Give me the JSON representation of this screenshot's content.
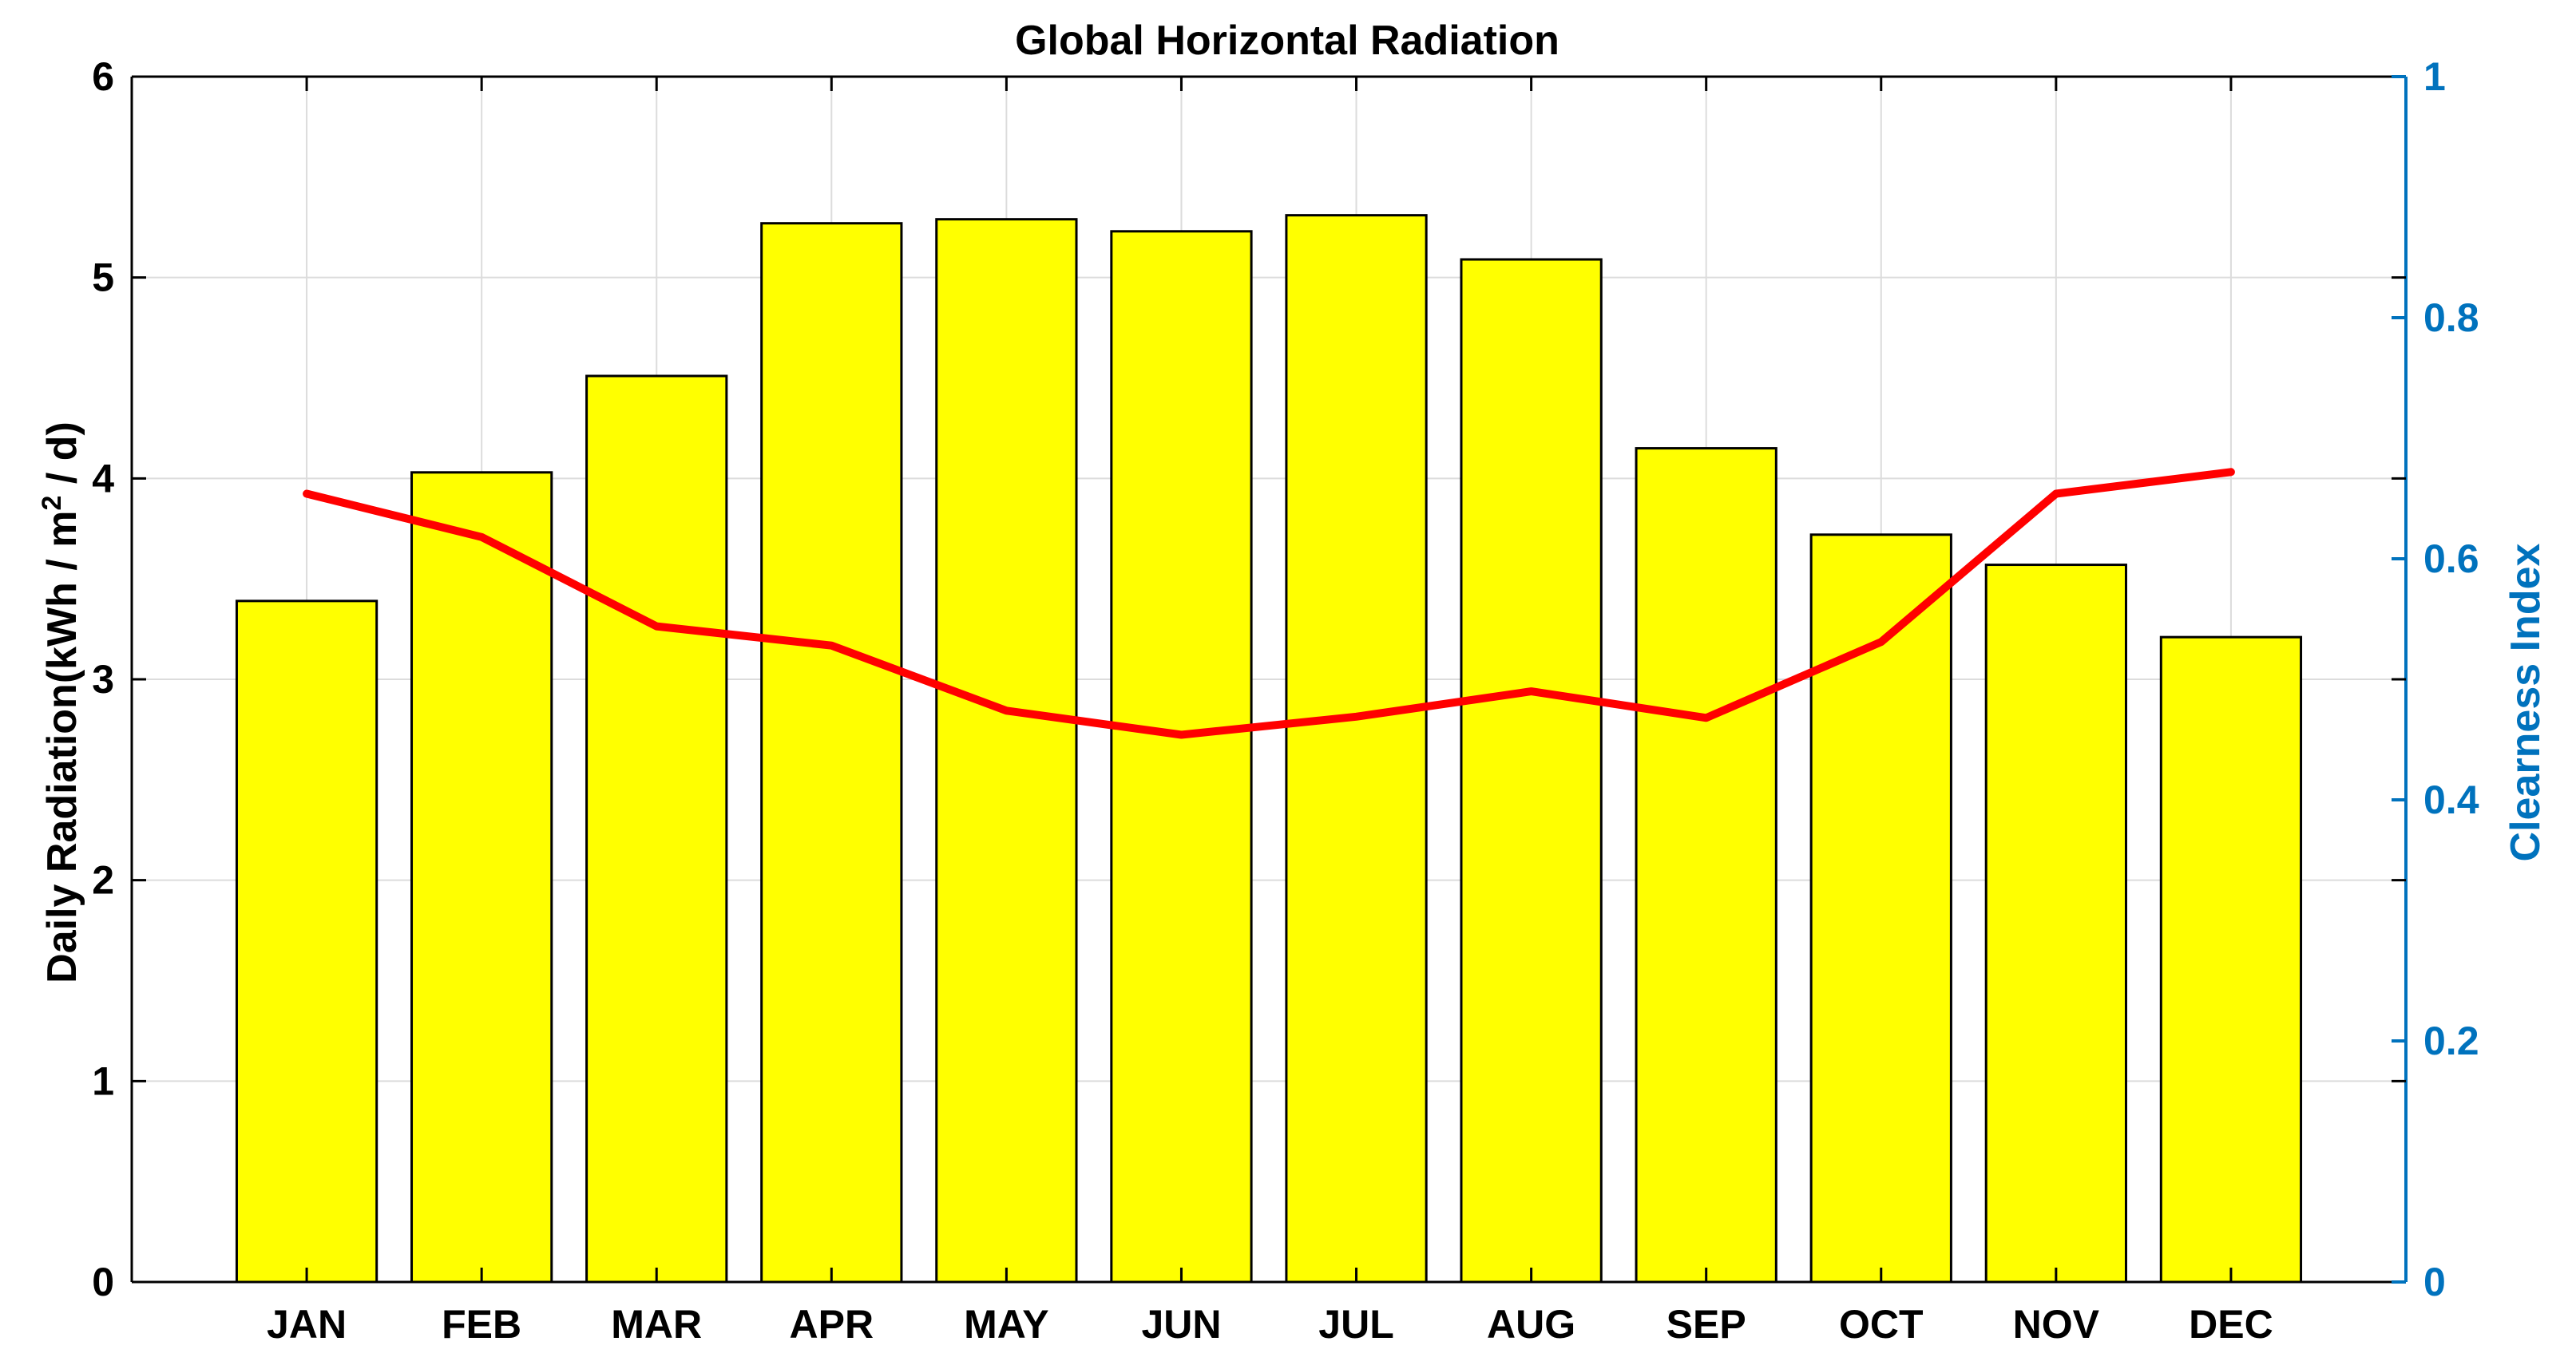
{
  "chart_data": {
    "type": "bar",
    "title": "Global Horizontal Radiation",
    "categories": [
      "JAN",
      "FEB",
      "MAR",
      "APR",
      "MAY",
      "JUN",
      "JUL",
      "AUG",
      "SEP",
      "OCT",
      "NOV",
      "DEC"
    ],
    "series": [
      {
        "type": "bar",
        "axis": "left",
        "values": [
          3.39,
          4.03,
          4.51,
          5.27,
          5.29,
          5.23,
          5.31,
          5.09,
          4.15,
          3.72,
          3.57,
          3.21
        ]
      },
      {
        "type": "line",
        "axis": "right",
        "values": [
          0.654,
          0.618,
          0.544,
          0.528,
          0.474,
          0.454,
          0.469,
          0.49,
          0.468,
          0.531,
          0.654,
          0.672
        ]
      }
    ],
    "ylabel": "Daily Radiation(kWh / m² / d)",
    "ylabel_parts": {
      "prefix": "Daily Radiation(kWh / m",
      "superscript": "2",
      "suffix": " / d)"
    },
    "y2label": "Clearness Index",
    "ylim": [
      0,
      6
    ],
    "y2lim": [
      0,
      1
    ],
    "yticks": [
      "0",
      "1",
      "2",
      "3",
      "4",
      "5",
      "6"
    ],
    "y2ticks": [
      "0",
      "0.2",
      "0.4",
      "0.6",
      "0.8",
      "1"
    ],
    "grid": true,
    "colors": {
      "bar_fill": "#ffff00",
      "bar_stroke": "#000000",
      "line": "#ff0000",
      "left_axis": "#000000",
      "right_axis": "#0072bd",
      "grid": "#dcdcdc"
    }
  }
}
